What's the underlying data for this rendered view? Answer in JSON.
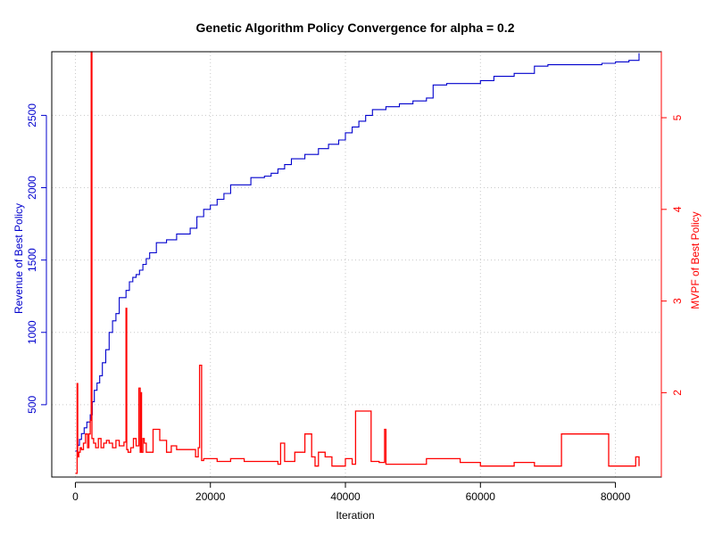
{
  "chart_data": {
    "type": "line",
    "title": "Genetic Algorithm Policy Convergence for alpha = 0.2",
    "xlabel": "Iteration",
    "ylabel_left": "Revenue of Best Policy",
    "ylabel_right": "MVPF of Best Policy",
    "xlim": [
      -3500,
      86800
    ],
    "ylim_left": [
      0,
      2940
    ],
    "ylim_right": [
      1.08,
      5.72
    ],
    "x_ticks": [
      0,
      20000,
      40000,
      60000,
      80000
    ],
    "y_ticks_left": [
      500,
      1000,
      1500,
      2000,
      2500
    ],
    "y_ticks_right": [
      2,
      3,
      4,
      5
    ],
    "grid": true,
    "colors": {
      "revenue": "#0000cd",
      "mvpf": "#ff0000",
      "grid": "#c8c8c8",
      "frame": "#000000"
    },
    "series": [
      {
        "axis": "left",
        "color": "#0000cd",
        "step": true,
        "x": [
          0,
          300,
          600,
          900,
          1300,
          1700,
          2200,
          2500,
          2800,
          3200,
          3600,
          4000,
          4500,
          5000,
          5500,
          6000,
          6500,
          7000,
          7500,
          8000,
          8500,
          9000,
          9500,
          10000,
          10500,
          11000,
          12000,
          13500,
          15000,
          17000,
          18000,
          19000,
          20000,
          21000,
          22000,
          23000,
          26000,
          28000,
          29000,
          30000,
          31000,
          32000,
          34000,
          36000,
          37500,
          39000,
          40000,
          41000,
          42000,
          43000,
          44000,
          46000,
          48000,
          50000,
          52000,
          53000,
          55000,
          60000,
          62000,
          65000,
          68000,
          70000,
          75000,
          78000,
          80000,
          82000,
          83500
        ],
        "values": [
          180,
          220,
          260,
          300,
          340,
          380,
          430,
          520,
          600,
          650,
          700,
          790,
          880,
          1000,
          1080,
          1130,
          1240,
          1240,
          1290,
          1350,
          1380,
          1400,
          1430,
          1470,
          1510,
          1550,
          1620,
          1640,
          1680,
          1720,
          1800,
          1850,
          1880,
          1920,
          1960,
          2020,
          2070,
          2080,
          2100,
          2130,
          2160,
          2200,
          2230,
          2270,
          2300,
          2330,
          2380,
          2420,
          2460,
          2500,
          2540,
          2560,
          2580,
          2600,
          2620,
          2710,
          2720,
          2740,
          2770,
          2790,
          2840,
          2850,
          2850,
          2860,
          2870,
          2880,
          2930
        ]
      },
      {
        "axis": "right",
        "color": "#ff0000",
        "step": true,
        "x": [
          0,
          250,
          350,
          500,
          700,
          900,
          1200,
          1500,
          1800,
          2000,
          2200,
          2350,
          2450,
          2700,
          3000,
          3400,
          3800,
          4200,
          4600,
          5000,
          5500,
          6000,
          6500,
          7200,
          7500,
          7600,
          7800,
          8200,
          8600,
          9000,
          9400,
          9600,
          9700,
          9800,
          10000,
          10200,
          10500,
          11500,
          12500,
          13500,
          14200,
          15000,
          16500,
          17800,
          18200,
          18400,
          18700,
          19000,
          21000,
          22000,
          23000,
          25000,
          27000,
          30000,
          30400,
          31000,
          32500,
          34000,
          35000,
          35500,
          36000,
          37000,
          38000,
          40000,
          41000,
          41500,
          43800,
          45000,
          45800,
          46000,
          47000,
          50000,
          52000,
          54000,
          57000,
          60000,
          65000,
          68000,
          72000,
          75000,
          78000,
          79000,
          81000,
          82500,
          83000,
          83500
        ],
        "values": [
          1.12,
          2.1,
          1.3,
          1.35,
          1.4,
          1.38,
          1.45,
          1.55,
          1.4,
          1.55,
          1.7,
          5.72,
          1.5,
          1.45,
          1.4,
          1.5,
          1.4,
          1.45,
          1.48,
          1.45,
          1.4,
          1.48,
          1.42,
          1.46,
          2.92,
          1.38,
          1.35,
          1.4,
          1.5,
          1.42,
          2.05,
          1.35,
          2.0,
          1.35,
          1.5,
          1.45,
          1.35,
          1.6,
          1.48,
          1.35,
          1.42,
          1.38,
          1.38,
          1.3,
          1.4,
          2.3,
          1.26,
          1.28,
          1.25,
          1.25,
          1.28,
          1.25,
          1.25,
          1.22,
          1.45,
          1.25,
          1.35,
          1.55,
          1.3,
          1.2,
          1.35,
          1.3,
          1.2,
          1.28,
          1.22,
          1.8,
          1.25,
          1.24,
          1.6,
          1.22,
          1.22,
          1.22,
          1.28,
          1.28,
          1.24,
          1.2,
          1.24,
          1.2,
          1.55,
          1.55,
          1.55,
          1.2,
          1.2,
          1.2,
          1.3,
          1.2
        ]
      }
    ]
  }
}
